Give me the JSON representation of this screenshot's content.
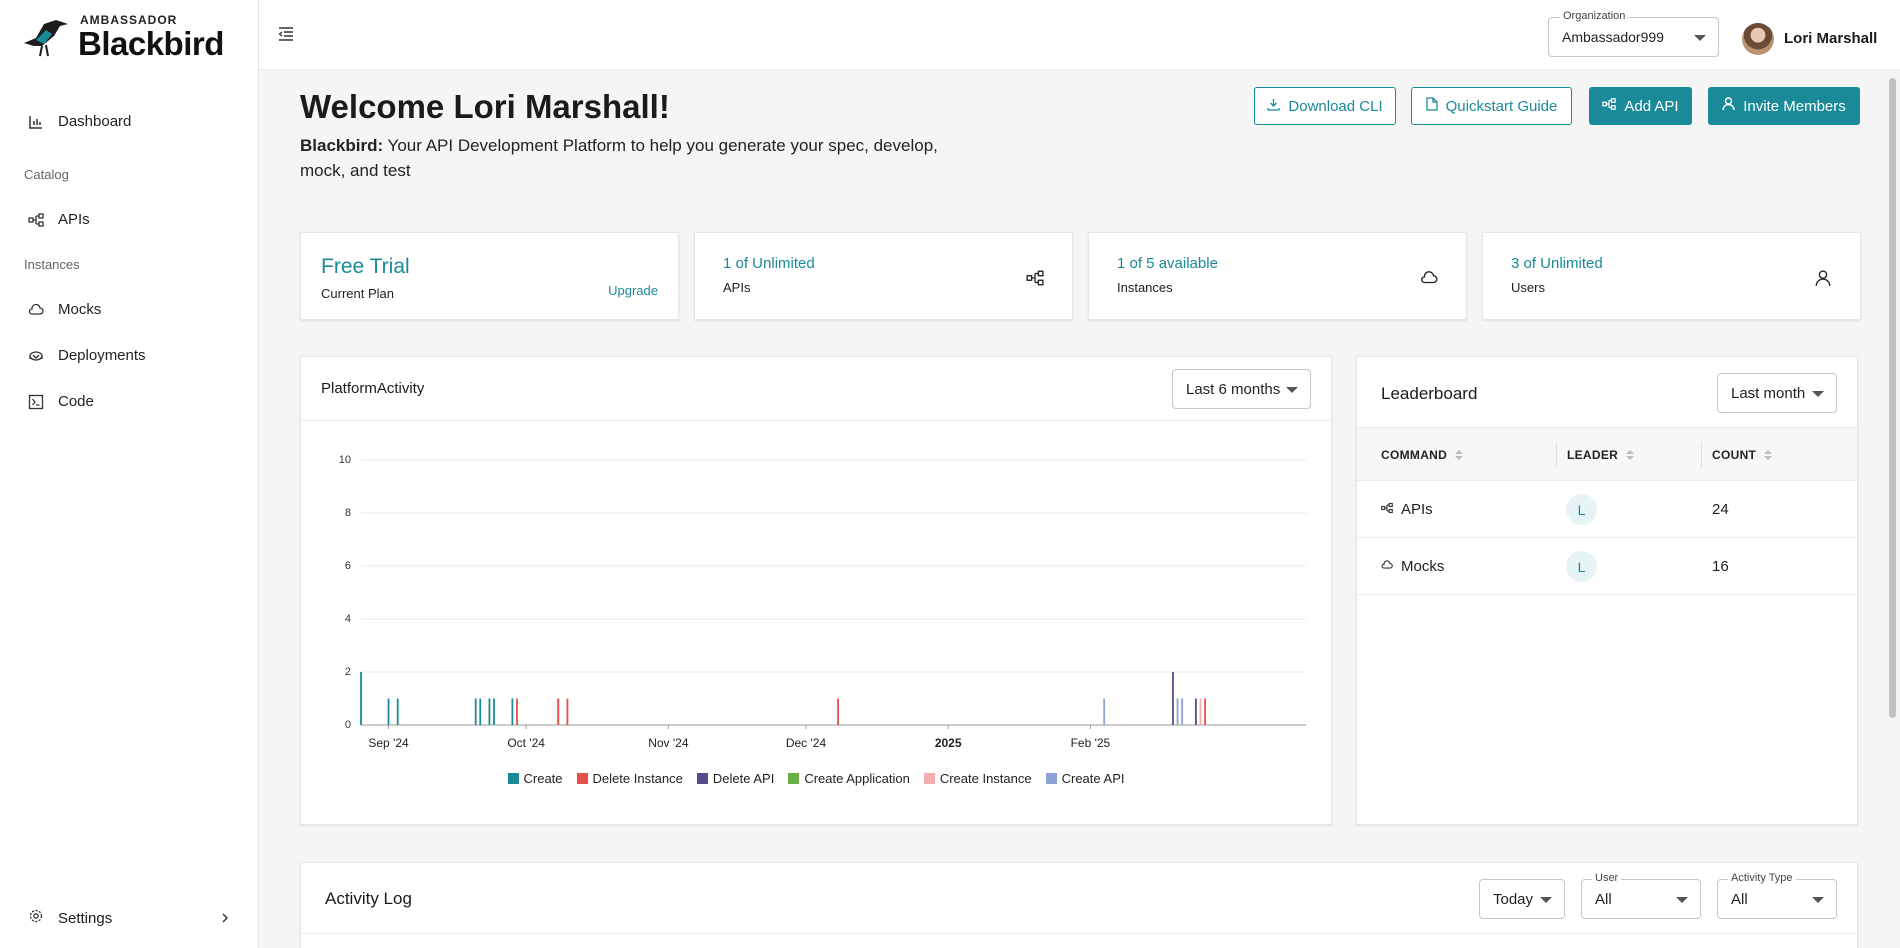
{
  "brand": {
    "small": "AMBASSADOR",
    "big": "Blackbird"
  },
  "sidebar": {
    "items": [
      {
        "label": "Dashboard",
        "icon": "bar-chart-icon"
      },
      {
        "label": "APIs",
        "icon": "api-nodes-icon"
      },
      {
        "label": "Mocks",
        "icon": "cloud-icon"
      },
      {
        "label": "Deployments",
        "icon": "deployments-icon"
      },
      {
        "label": "Code",
        "icon": "terminal-icon"
      }
    ],
    "sections": {
      "catalog": "Catalog",
      "instances": "Instances"
    },
    "settings": "Settings"
  },
  "topbar": {
    "org_label": "Organization",
    "org_value": "Ambassador999",
    "user_name": "Lori Marshall"
  },
  "header": {
    "welcome": "Welcome Lori Marshall!",
    "tagline_bold": "Blackbird:",
    "tagline": " Your API Development Platform to help you generate your spec, develop, mock, and test"
  },
  "actions": {
    "download_cli": "Download CLI",
    "quickstart": "Quickstart Guide",
    "add_api": "Add API",
    "invite": "Invite Members"
  },
  "stats": {
    "plan": {
      "title": "Free Trial",
      "sub": "Current Plan",
      "link": "Upgrade"
    },
    "apis": {
      "value": "1 of Unlimited",
      "label": "APIs"
    },
    "instances": {
      "value": "1 of 5 available",
      "label": "Instances"
    },
    "users": {
      "value": "3 of Unlimited",
      "label": "Users"
    }
  },
  "platform": {
    "title": "PlatformActivity",
    "range": "Last 6 months"
  },
  "chart_data": {
    "type": "bar",
    "title": "PlatformActivity",
    "ylim": [
      0,
      10
    ],
    "yticks": [
      "0",
      "2",
      "4",
      "6",
      "8",
      "10"
    ],
    "xticks": [
      "Sep '24",
      "Oct '24",
      "Nov '24",
      "Dec '24",
      "2025",
      "Feb '25"
    ],
    "x_range": [
      "2024-08-26",
      "2025-03-20"
    ],
    "grid": true,
    "legend_position": "bottom",
    "series": [
      {
        "name": "Create",
        "color": "#1a8a99"
      },
      {
        "name": "Delete Instance",
        "color": "#e5504a"
      },
      {
        "name": "Delete API",
        "color": "#5b4a8b"
      },
      {
        "name": "Create Application",
        "color": "#6aae45"
      },
      {
        "name": "Create Instance",
        "color": "#f2aeb2"
      },
      {
        "name": "Create API",
        "color": "#8ea2d6"
      }
    ],
    "points": [
      {
        "date": "2024-08-26",
        "series": "Create",
        "value": 2
      },
      {
        "date": "2024-09-01",
        "series": "Create",
        "value": 1
      },
      {
        "date": "2024-09-03",
        "series": "Create",
        "value": 1
      },
      {
        "date": "2024-09-20",
        "series": "Create",
        "value": 1
      },
      {
        "date": "2024-09-21",
        "series": "Create",
        "value": 1
      },
      {
        "date": "2024-09-23",
        "series": "Create",
        "value": 1
      },
      {
        "date": "2024-09-24",
        "series": "Create",
        "value": 1
      },
      {
        "date": "2024-09-28",
        "series": "Create",
        "value": 1
      },
      {
        "date": "2024-09-29",
        "series": "Delete Instance",
        "value": 1
      },
      {
        "date": "2024-10-08",
        "series": "Create Application",
        "value": 1
      },
      {
        "date": "2024-10-08",
        "series": "Delete Instance",
        "value": 1
      },
      {
        "date": "2024-10-10",
        "series": "Delete Instance",
        "value": 1
      },
      {
        "date": "2024-12-08",
        "series": "Delete Instance",
        "value": 1
      },
      {
        "date": "2025-02-04",
        "series": "Create API",
        "value": 1
      },
      {
        "date": "2025-02-19",
        "series": "Delete API",
        "value": 2
      },
      {
        "date": "2025-02-20",
        "series": "Create API",
        "value": 1
      },
      {
        "date": "2025-02-21",
        "series": "Create API",
        "value": 1
      },
      {
        "date": "2025-02-24",
        "series": "Delete API",
        "value": 1
      },
      {
        "date": "2025-02-25",
        "series": "Create Instance",
        "value": 1
      },
      {
        "date": "2025-02-26",
        "series": "Delete Instance",
        "value": 1
      }
    ]
  },
  "leaderboard": {
    "title": "Leaderboard",
    "range": "Last month",
    "columns": [
      "COMMAND",
      "LEADER",
      "COUNT"
    ],
    "rows": [
      {
        "command": "APIs",
        "leader": "L",
        "count": "24",
        "icon": "api-nodes-icon"
      },
      {
        "command": "Mocks",
        "leader": "L",
        "count": "16",
        "icon": "cloud-icon"
      }
    ]
  },
  "activity": {
    "title": "Activity Log",
    "period": "Today",
    "user_label": "User",
    "user_value": "All",
    "type_label": "Activity Type",
    "type_value": "All"
  },
  "colors": {
    "accent": "#1a8a99"
  }
}
